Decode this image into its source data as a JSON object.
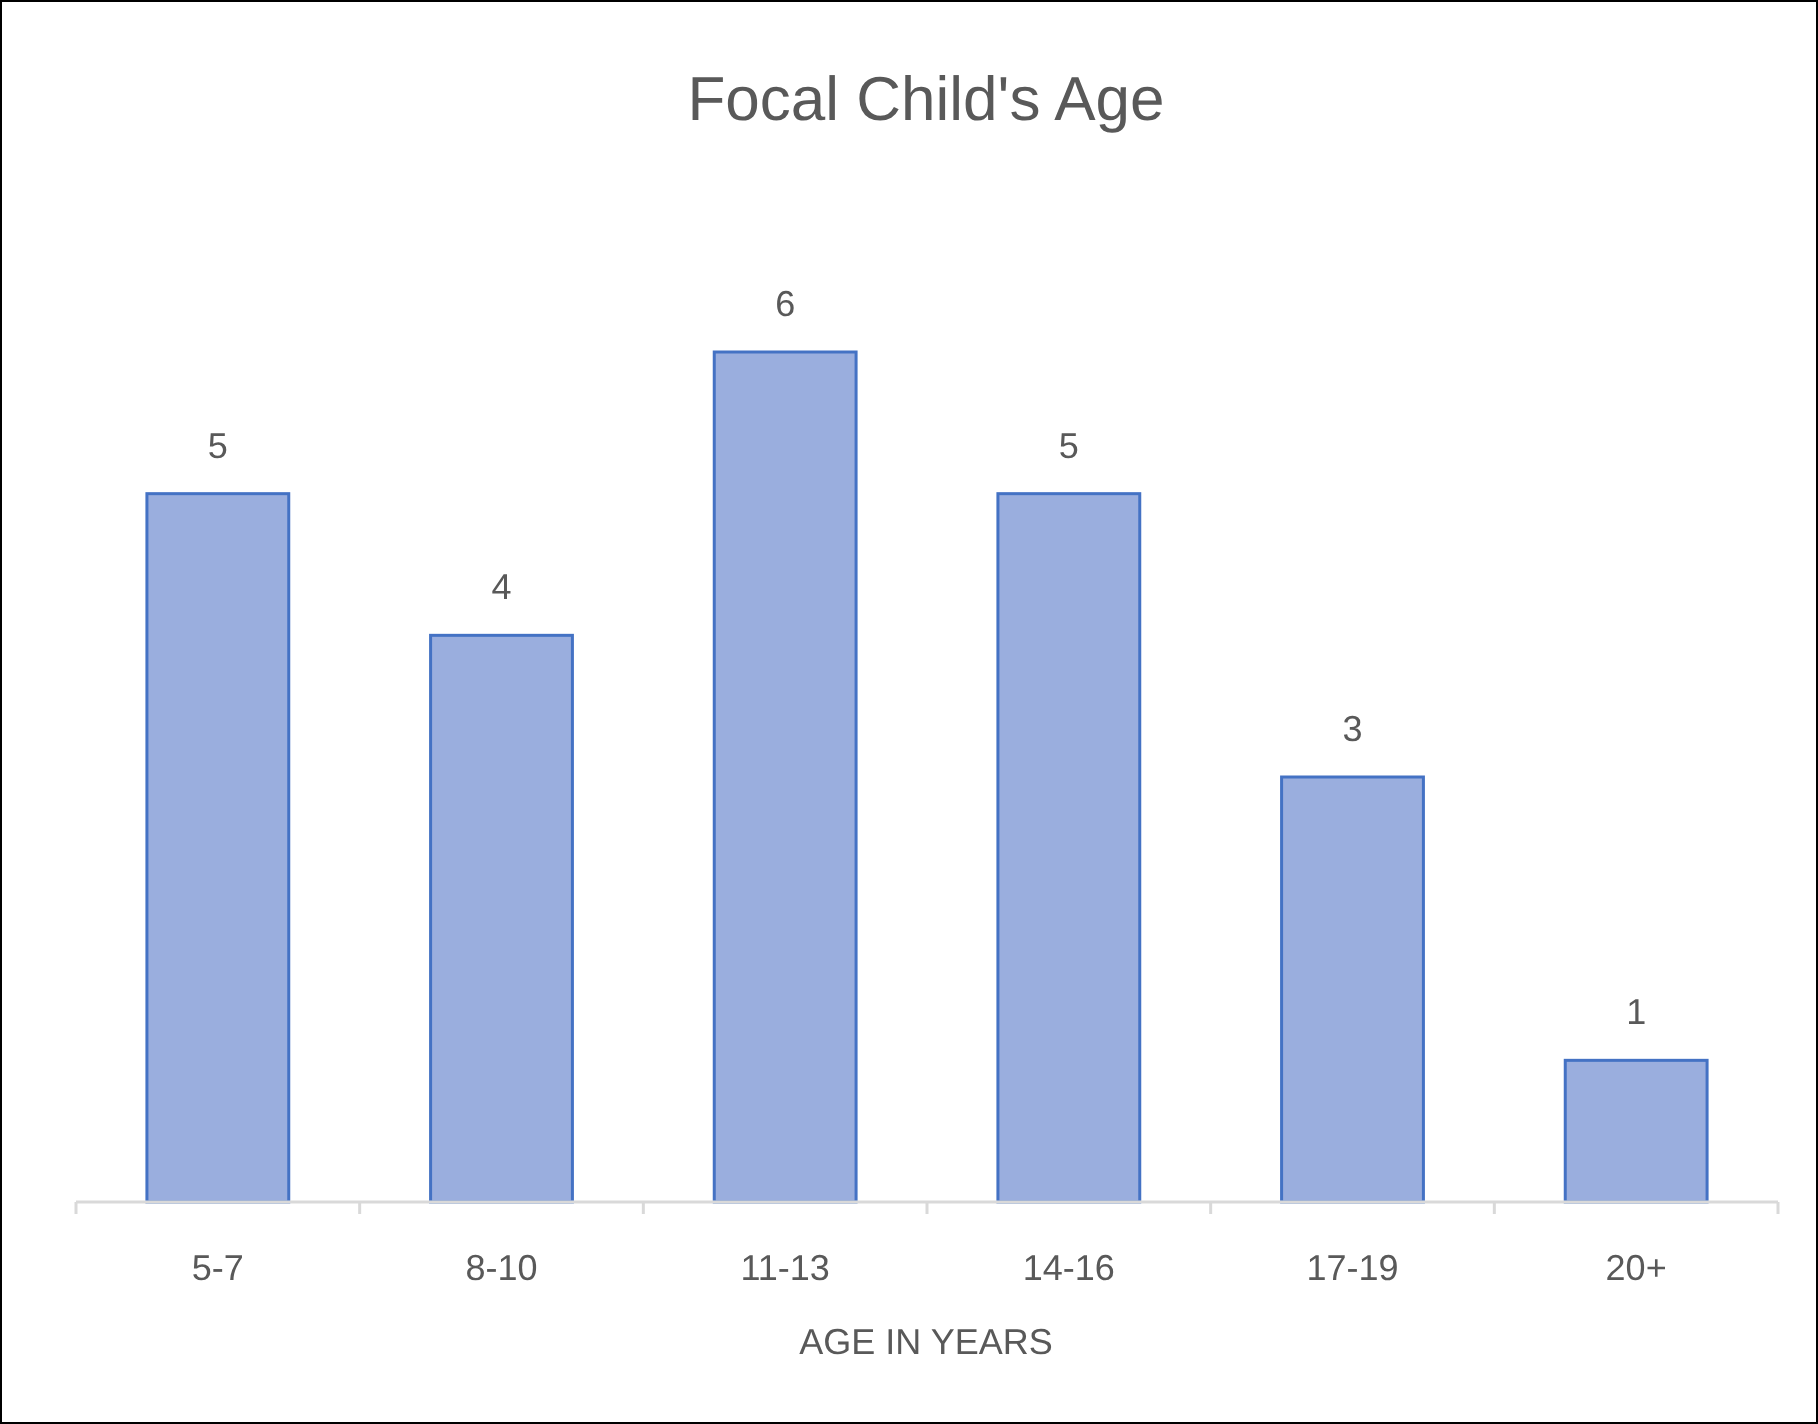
{
  "chart_data": {
    "type": "bar",
    "title": "Focal Child's Age",
    "xlabel": "AGE IN YEARS",
    "categories": [
      "5-7",
      "8-10",
      "11-13",
      "14-16",
      "17-19",
      "20+"
    ],
    "values": [
      5,
      4,
      6,
      5,
      3,
      1
    ],
    "color": "#9aaede",
    "data_labels": true,
    "grid": false
  }
}
